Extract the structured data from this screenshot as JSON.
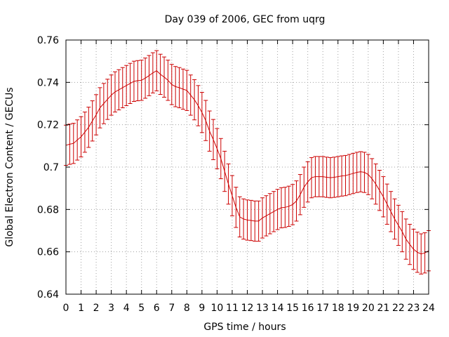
{
  "chart_data": {
    "type": "line",
    "title": "Day 039 of 2006, GEC from uqrg",
    "xlabel": "GPS time / hours",
    "ylabel": "Global Electron Content / GECUs",
    "xlim": [
      0,
      24
    ],
    "ylim": [
      0.64,
      0.76
    ],
    "x_ticks": [
      "0",
      "1",
      "2",
      "3",
      "4",
      "5",
      "6",
      "7",
      "8",
      "9",
      "10",
      "11",
      "12",
      "13",
      "14",
      "15",
      "16",
      "17",
      "18",
      "19",
      "20",
      "21",
      "22",
      "23",
      "24"
    ],
    "y_ticks": [
      "0.64",
      "0.66",
      "0.68",
      "0.7",
      "0.72",
      "0.74",
      "0.76"
    ],
    "grid": true,
    "line_color": "#cc0000",
    "series": [
      {
        "x": [
          0.0,
          0.25,
          0.5,
          0.75,
          1.0,
          1.25,
          1.5,
          1.75,
          2.0,
          2.25,
          2.5,
          2.75,
          3.0,
          3.25,
          3.5,
          3.75,
          4.0,
          4.25,
          4.5,
          4.75,
          5.0,
          5.25,
          5.5,
          5.75,
          6.0,
          6.25,
          6.5,
          6.75,
          7.0,
          7.25,
          7.5,
          7.75,
          8.0,
          8.25,
          8.5,
          8.75,
          9.0,
          9.25,
          9.5,
          9.75,
          10.0,
          10.25,
          10.5,
          10.75,
          11.0,
          11.25,
          11.5,
          11.75,
          12.0,
          12.25,
          12.5,
          12.75,
          13.0,
          13.25,
          13.5,
          13.75,
          14.0,
          14.25,
          14.5,
          14.75,
          15.0,
          15.25,
          15.5,
          15.75,
          16.0,
          16.25,
          16.5,
          16.75,
          17.0,
          17.25,
          17.5,
          17.75,
          18.0,
          18.25,
          18.5,
          18.75,
          19.0,
          19.25,
          19.5,
          19.75,
          20.0,
          20.25,
          20.5,
          20.75,
          21.0,
          21.25,
          21.5,
          21.75,
          22.0,
          22.25,
          22.5,
          22.75,
          23.0,
          23.25,
          23.5,
          23.75,
          24.0
        ],
        "y": [
          0.7103,
          0.7108,
          0.7112,
          0.7128,
          0.7143,
          0.7165,
          0.7188,
          0.7218,
          0.7247,
          0.728,
          0.73,
          0.732,
          0.734,
          0.7355,
          0.7365,
          0.7375,
          0.7385,
          0.7395,
          0.7405,
          0.7408,
          0.741,
          0.742,
          0.7432,
          0.7445,
          0.7455,
          0.7438,
          0.7425,
          0.741,
          0.739,
          0.738,
          0.7375,
          0.7368,
          0.7362,
          0.734,
          0.7318,
          0.729,
          0.7258,
          0.722,
          0.717,
          0.713,
          0.7087,
          0.704,
          0.698,
          0.692,
          0.6865,
          0.681,
          0.6765,
          0.6755,
          0.675,
          0.6748,
          0.6745,
          0.6745,
          0.676,
          0.677,
          0.678,
          0.679,
          0.68,
          0.6808,
          0.681,
          0.6815,
          0.6823,
          0.684,
          0.687,
          0.6905,
          0.693,
          0.695,
          0.6955,
          0.6955,
          0.6955,
          0.6952,
          0.695,
          0.6952,
          0.6955,
          0.6958,
          0.696,
          0.6965,
          0.697,
          0.6975,
          0.6978,
          0.6975,
          0.6965,
          0.6945,
          0.692,
          0.689,
          0.686,
          0.6825,
          0.679,
          0.6755,
          0.6725,
          0.6695,
          0.666,
          0.6635,
          0.6612,
          0.6598,
          0.659,
          0.6595,
          0.6605
        ],
        "error": 0.0095
      }
    ]
  }
}
